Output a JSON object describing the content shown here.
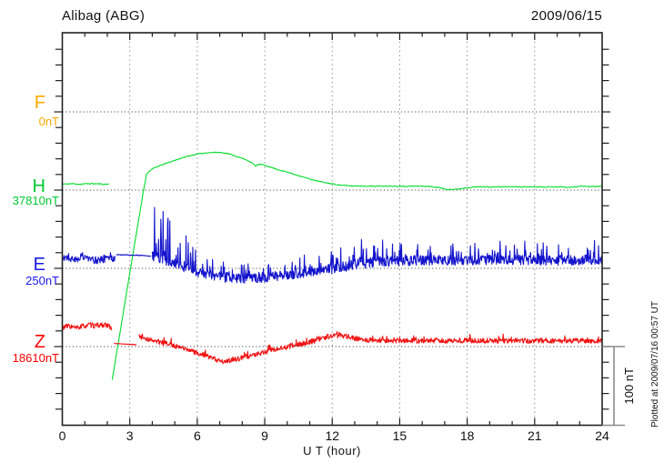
{
  "header": {
    "title": "Alibag (ABG)",
    "date": "2009/06/15"
  },
  "chart_data": {
    "type": "line",
    "title": "Alibag (ABG)",
    "subtitle_date": "2009/06/15",
    "xlabel": "U T (hour)",
    "x_axis": {
      "range": [
        0,
        24
      ],
      "minor_step_hours": 1,
      "major_step_hours": 3,
      "tick_labels": [
        "0",
        "3",
        "6",
        "9",
        "12",
        "15",
        "18",
        "21",
        "24"
      ],
      "grid_hours": [
        3,
        6,
        9,
        12,
        15,
        18,
        21
      ]
    },
    "y_axis": {
      "nT_per_minor_tick": 20,
      "grid": "dotted horizontal line at each channel baseline"
    },
    "scale_bar": {
      "label": "100 nT",
      "nT": 100
    },
    "plotted_at": "Plotted at 2009/07/16 00:57 UT",
    "colors": {
      "frame": "#222222",
      "grid_vertical": "#909090",
      "grid_baseline": "#4a4a4a",
      "scale_bar": "#8a8a8a"
    },
    "channels": [
      {
        "id": "F",
        "letter": "F",
        "baseline_label": "0nT",
        "label_color": "#FFA800",
        "trace_color": "#FFA800",
        "baseline_nT": 0,
        "has_trace": false,
        "segments": []
      },
      {
        "id": "H",
        "letter": "H",
        "baseline_label": "37810nT",
        "label_color": "#00C832",
        "trace_color": "#00DC28",
        "baseline_nT": 37810,
        "has_trace": true,
        "seed": 11,
        "step_hours": 0.04,
        "segments": [
          {
            "noise_nT": 0.7,
            "points": [
              [
                0,
                7.5
              ],
              [
                0.4,
                8.2
              ],
              [
                0.8,
                7.6
              ],
              [
                1.2,
                8.3
              ],
              [
                1.6,
                8.0
              ],
              [
                1.9,
                7.4
              ],
              [
                2.08,
                7.8
              ]
            ]
          },
          {
            "noise_nT": 0.55,
            "points": [
              [
                2.22,
                -242
              ],
              [
                2.6,
                -176
              ],
              [
                3.0,
                -106
              ],
              [
                3.4,
                -37
              ],
              [
                3.6,
                -2
              ],
              [
                3.74,
                20
              ],
              [
                3.9,
                25
              ],
              [
                4.1,
                28.5
              ],
              [
                4.4,
                32
              ],
              [
                4.8,
                36
              ],
              [
                5.2,
                40
              ],
              [
                5.6,
                43.5
              ],
              [
                6.0,
                46
              ],
              [
                6.4,
                47.7
              ],
              [
                6.8,
                48.3
              ],
              [
                7.1,
                48
              ],
              [
                7.35,
                46.8
              ],
              [
                7.6,
                44.5
              ],
              [
                7.9,
                41.5
              ],
              [
                8.2,
                38.5
              ],
              [
                8.45,
                34.5
              ],
              [
                8.6,
                30.5
              ],
              [
                8.72,
                33
              ],
              [
                8.9,
                32.5
              ],
              [
                9.2,
                30
              ],
              [
                9.6,
                26
              ],
              [
                10,
                23
              ],
              [
                10.4,
                19.5
              ],
              [
                10.8,
                16
              ],
              [
                11.2,
                12.5
              ],
              [
                11.6,
                10
              ],
              [
                12,
                8
              ],
              [
                12.4,
                6.3
              ],
              [
                12.8,
                5.4
              ],
              [
                13.4,
                5.2
              ],
              [
                14,
                5
              ],
              [
                14.6,
                5.3
              ],
              [
                15.2,
                4.9
              ],
              [
                15.8,
                5.1
              ],
              [
                16.3,
                4.8
              ],
              [
                16.7,
                3.4
              ],
              [
                17.1,
                1.2
              ],
              [
                17.4,
                0.8
              ],
              [
                17.7,
                1.8
              ],
              [
                18.1,
                3.6
              ],
              [
                18.6,
                4.3
              ],
              [
                19.2,
                4
              ],
              [
                19.8,
                4.4
              ],
              [
                20.4,
                4.1
              ],
              [
                21,
                4.4
              ],
              [
                21.6,
                4
              ],
              [
                22.1,
                4.4
              ],
              [
                22.5,
                3.4
              ],
              [
                22.8,
                4.2
              ],
              [
                23.1,
                5.3
              ],
              [
                23.5,
                4.6
              ],
              [
                24,
                5
              ]
            ]
          }
        ]
      },
      {
        "id": "E",
        "letter": "E",
        "baseline_label": "250nT",
        "label_color": "#1919E6",
        "trace_color": "#1414CD",
        "baseline_nT": 250,
        "has_trace": true,
        "seed": 22,
        "step_hours": 0.02,
        "segments": [
          {
            "noise_nT": 5.0,
            "spike_prob": 0.12,
            "spike_env": [
              [
                0,
                9
              ],
              [
                2.35,
                9
              ]
            ],
            "points": [
              [
                0,
                13
              ],
              [
                0.25,
                15
              ],
              [
                0.5,
                11
              ],
              [
                0.75,
                14
              ],
              [
                1.0,
                16
              ],
              [
                1.25,
                12
              ],
              [
                1.5,
                10
              ],
              [
                1.75,
                12.5
              ],
              [
                2.0,
                11.5
              ],
              [
                2.2,
                13
              ],
              [
                2.35,
                14.5
              ]
            ]
          },
          {
            "noise_nT": 0.5,
            "points": [
              [
                2.4,
                17.5
              ],
              [
                3.0,
                17
              ],
              [
                3.5,
                16.5
              ],
              [
                3.95,
                15.5
              ]
            ]
          },
          {
            "noise_nT": 6.5,
            "spike_prob": 0.22,
            "spike_env": [
              [
                4.0,
                62
              ],
              [
                4.5,
                68
              ],
              [
                5.0,
                58
              ],
              [
                5.6,
                48
              ],
              [
                6.2,
                40
              ],
              [
                6.8,
                30
              ],
              [
                7.5,
                22
              ],
              [
                8.5,
                17
              ],
              [
                9.5,
                15
              ],
              [
                10.5,
                20
              ],
              [
                11.3,
                25
              ],
              [
                12.2,
                27
              ],
              [
                13.2,
                28
              ],
              [
                14.2,
                24
              ],
              [
                15.5,
                21
              ],
              [
                17,
                20
              ],
              [
                18.5,
                21
              ],
              [
                20,
                22
              ],
              [
                21.5,
                23
              ],
              [
                23,
                20
              ],
              [
                24,
                20
              ]
            ],
            "points": [
              [
                4.0,
                16
              ],
              [
                4.3,
                13
              ],
              [
                4.7,
                9
              ],
              [
                5.1,
                5
              ],
              [
                5.5,
                1
              ],
              [
                5.9,
                -3.5
              ],
              [
                6.3,
                -7
              ],
              [
                6.7,
                -9.5
              ],
              [
                7.1,
                -11.3
              ],
              [
                7.5,
                -12.3
              ],
              [
                8,
                -13
              ],
              [
                8.5,
                -12.4
              ],
              [
                9,
                -11.7
              ],
              [
                9.5,
                -10.3
              ],
              [
                10,
                -8.3
              ],
              [
                10.5,
                -6.3
              ],
              [
                11,
                -4.4
              ],
              [
                11.5,
                -2.4
              ],
              [
                12,
                -0.4
              ],
              [
                12.5,
                2
              ],
              [
                13,
                4.6
              ],
              [
                13.5,
                6.6
              ],
              [
                14,
                8.3
              ],
              [
                14.8,
                9.4
              ],
              [
                15.6,
                9.9
              ],
              [
                16.4,
                10.2
              ],
              [
                17.2,
                10.3
              ],
              [
                18,
                10.3
              ],
              [
                19,
                10.4
              ],
              [
                20,
                10.3
              ],
              [
                21,
                10.4
              ],
              [
                22,
                10.3
              ],
              [
                23,
                10.6
              ],
              [
                24,
                11
              ]
            ]
          }
        ]
      },
      {
        "id": "Z",
        "letter": "Z",
        "baseline_label": "18610nT",
        "label_color": "#FF0000",
        "trace_color": "#F01414",
        "baseline_nT": 18610,
        "has_trace": true,
        "seed": 33,
        "step_hours": 0.02,
        "segments": [
          {
            "noise_nT": 3.4,
            "points": [
              [
                0,
                24.5
              ],
              [
                0.3,
                26.5
              ],
              [
                0.6,
                23.5
              ],
              [
                0.9,
                26
              ],
              [
                1.2,
                27.5
              ],
              [
                1.5,
                26.5
              ],
              [
                1.8,
                28
              ],
              [
                2.05,
                26
              ],
              [
                2.2,
                24.5
              ]
            ]
          },
          {
            "noise_nT": 0.3,
            "points": [
              [
                2.3,
                4.0
              ],
              [
                2.8,
                3.2
              ],
              [
                3.3,
                2.4
              ]
            ]
          },
          {
            "noise_nT": 3.2,
            "spike_prob": 0.08,
            "spike_env": [
              [
                3.4,
                6
              ],
              [
                24,
                6
              ]
            ],
            "points": [
              [
                3.4,
                14
              ],
              [
                3.7,
                9.5
              ],
              [
                4.0,
                8
              ],
              [
                4.4,
                5.5
              ],
              [
                4.8,
                2.5
              ],
              [
                5.2,
                -1
              ],
              [
                5.6,
                -4.5
              ],
              [
                6.0,
                -8
              ],
              [
                6.4,
                -12
              ],
              [
                6.8,
                -16
              ],
              [
                7.1,
                -19.5
              ],
              [
                7.35,
                -18.5
              ],
              [
                7.7,
                -16.5
              ],
              [
                8.1,
                -13.5
              ],
              [
                8.5,
                -11
              ],
              [
                8.9,
                -8
              ],
              [
                9.3,
                -5
              ],
              [
                9.7,
                -2.5
              ],
              [
                10.1,
                0
              ],
              [
                10.5,
                2.5
              ],
              [
                10.9,
                5
              ],
              [
                11.3,
                8
              ],
              [
                11.7,
                11
              ],
              [
                12,
                13.5
              ],
              [
                12.35,
                14.5
              ],
              [
                12.7,
                12.5
              ],
              [
                13.1,
                9.5
              ],
              [
                13.6,
                8.2
              ],
              [
                14.2,
                8.2
              ],
              [
                14.8,
                7.4
              ],
              [
                15.4,
                7.8
              ],
              [
                16,
                7.3
              ],
              [
                16.6,
                7.8
              ],
              [
                17.2,
                7.3
              ],
              [
                17.8,
                7.8
              ],
              [
                18.4,
                7.3
              ],
              [
                19,
                7.7
              ],
              [
                19.6,
                7.2
              ],
              [
                20.2,
                7.8
              ],
              [
                20.8,
                7.3
              ],
              [
                21.4,
                7.6
              ],
              [
                22,
                7.2
              ],
              [
                22.6,
                7.6
              ],
              [
                23.2,
                7.2
              ],
              [
                23.7,
                7.5
              ],
              [
                24,
                7.8
              ]
            ]
          }
        ]
      }
    ]
  }
}
